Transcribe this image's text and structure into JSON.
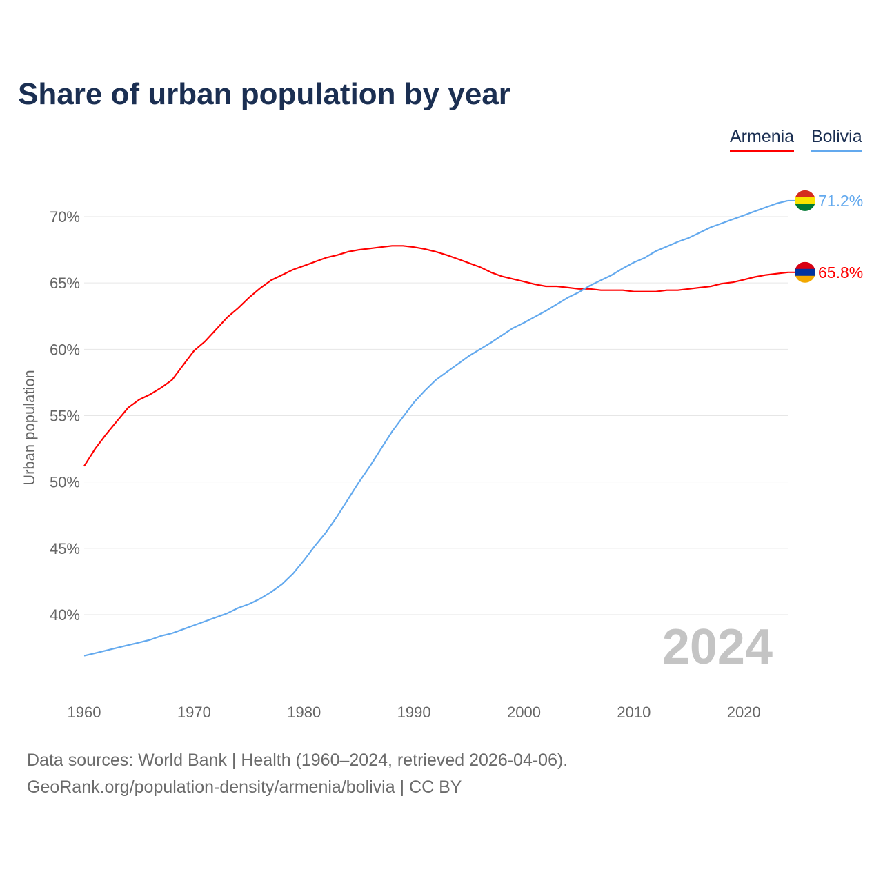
{
  "chart_data": {
    "type": "line",
    "title": "Share of urban population by year",
    "xlabel": "",
    "ylabel": "Urban population",
    "xlim": [
      1960,
      2024
    ],
    "ylim": [
      36,
      72
    ],
    "x_ticks": [
      "1960",
      "1970",
      "1980",
      "1990",
      "2000",
      "2010",
      "2020"
    ],
    "y_ticks": [
      "40%",
      "45%",
      "50%",
      "55%",
      "60%",
      "65%",
      "70%"
    ],
    "y_tick_values": [
      40,
      45,
      50,
      55,
      60,
      65,
      70
    ],
    "x_tick_values": [
      1960,
      1970,
      1980,
      1990,
      2000,
      2010,
      2020
    ],
    "grid": true,
    "legend_placement": "top-right",
    "watermark_year": "2024",
    "x": [
      1960,
      1961,
      1962,
      1963,
      1964,
      1965,
      1966,
      1967,
      1968,
      1969,
      1970,
      1971,
      1972,
      1973,
      1974,
      1975,
      1976,
      1977,
      1978,
      1979,
      1980,
      1981,
      1982,
      1983,
      1984,
      1985,
      1986,
      1987,
      1988,
      1989,
      1990,
      1991,
      1992,
      1993,
      1994,
      1995,
      1996,
      1997,
      1998,
      1999,
      2000,
      2001,
      2002,
      2003,
      2004,
      2005,
      2006,
      2007,
      2008,
      2009,
      2010,
      2011,
      2012,
      2013,
      2014,
      2015,
      2016,
      2017,
      2018,
      2019,
      2020,
      2021,
      2022,
      2023,
      2024
    ],
    "series": [
      {
        "name": "Armenia",
        "color": "#ff0000",
        "end_label": "65.8%",
        "flag": [
          "#d90012",
          "#0033a0",
          "#f2a800"
        ],
        "values": [
          51.2,
          52.5,
          53.6,
          54.6,
          55.6,
          56.2,
          56.6,
          57.1,
          57.7,
          58.8,
          59.9,
          60.6,
          61.5,
          62.4,
          63.1,
          63.9,
          64.6,
          65.2,
          65.6,
          66.0,
          66.3,
          66.6,
          66.9,
          67.1,
          67.35,
          67.5,
          67.6,
          67.7,
          67.8,
          67.8,
          67.7,
          67.55,
          67.35,
          67.1,
          66.8,
          66.5,
          66.2,
          65.8,
          65.5,
          65.3,
          65.1,
          64.9,
          64.75,
          64.75,
          64.65,
          64.55,
          64.55,
          64.45,
          64.45,
          64.45,
          64.35,
          64.35,
          64.35,
          64.45,
          64.45,
          64.55,
          64.65,
          64.75,
          64.95,
          65.05,
          65.25,
          65.45,
          65.6,
          65.7,
          65.8
        ]
      },
      {
        "name": "Bolivia",
        "color": "#63a9ee",
        "end_label": "71.2%",
        "flag": [
          "#d52b1e",
          "#f9e300",
          "#007934"
        ],
        "values": [
          36.9,
          37.1,
          37.3,
          37.5,
          37.7,
          37.9,
          38.1,
          38.4,
          38.6,
          38.9,
          39.2,
          39.5,
          39.8,
          40.1,
          40.5,
          40.8,
          41.2,
          41.7,
          42.3,
          43.1,
          44.1,
          45.2,
          46.2,
          47.4,
          48.7,
          50.0,
          51.2,
          52.5,
          53.8,
          54.9,
          56.0,
          56.9,
          57.7,
          58.3,
          58.9,
          59.5,
          60.0,
          60.5,
          61.05,
          61.6,
          62.0,
          62.45,
          62.9,
          63.4,
          63.9,
          64.3,
          64.8,
          65.2,
          65.6,
          66.1,
          66.55,
          66.9,
          67.4,
          67.75,
          68.1,
          68.4,
          68.8,
          69.2,
          69.5,
          69.8,
          70.1,
          70.4,
          70.7,
          71.0,
          71.2
        ]
      }
    ]
  },
  "legend": {
    "armenia": "Armenia",
    "bolivia": "Bolivia"
  },
  "footer": {
    "sources": "Data sources: World Bank | Health (1960–2024, retrieved 2026-04-06).",
    "attribution": "GeoRank.org/population-density/armenia/bolivia | CC BY"
  }
}
